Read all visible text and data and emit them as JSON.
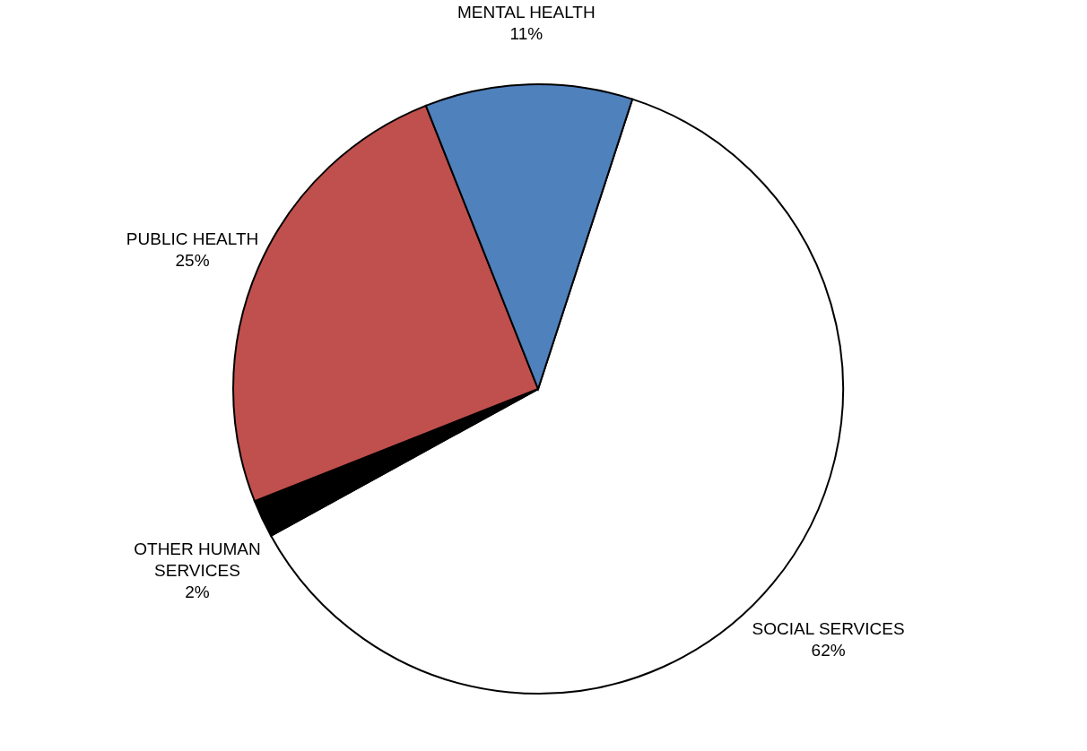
{
  "chart_data": {
    "type": "pie",
    "categories": [
      "SOCIAL SERVICES",
      "OTHER HUMAN SERVICES",
      "PUBLIC HEALTH",
      "MENTAL HEALTH"
    ],
    "values": [
      62,
      2,
      25,
      11
    ],
    "value_labels": [
      "62%",
      "2%",
      "25%",
      "11%"
    ],
    "colors": [
      "#ffffff",
      "#000000",
      "#c0504d",
      "#4f81bd"
    ],
    "legend": false
  }
}
